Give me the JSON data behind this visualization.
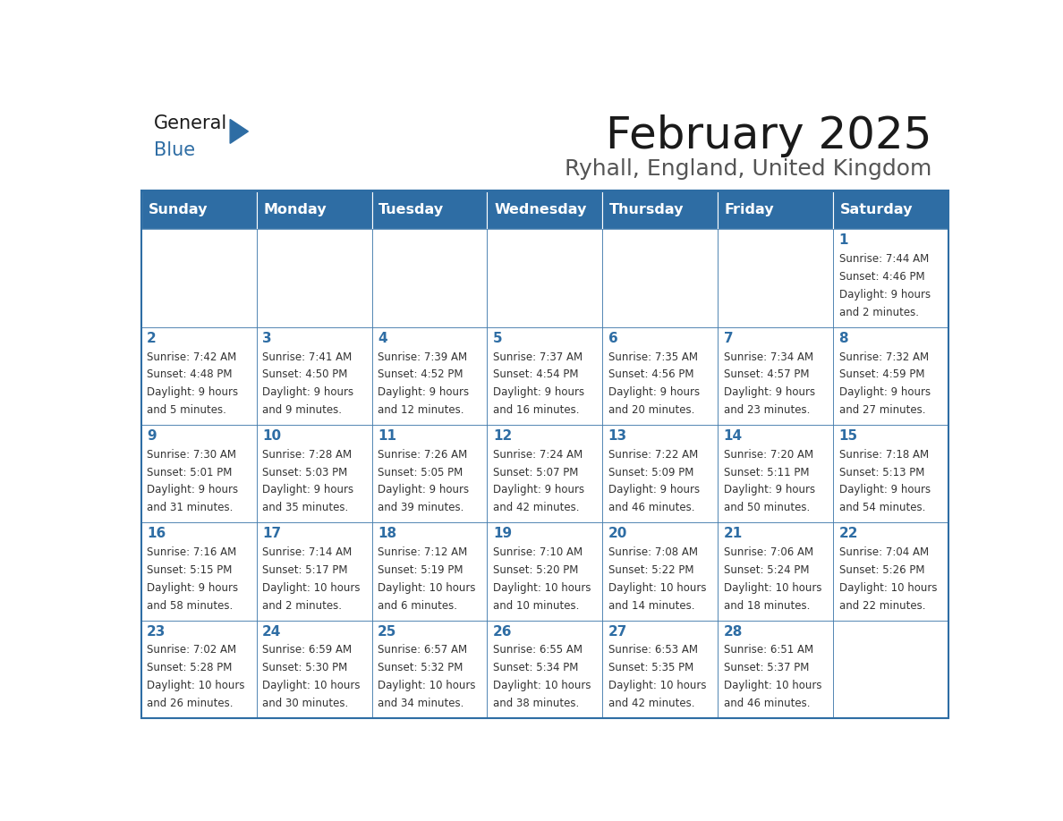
{
  "title": "February 2025",
  "subtitle": "Ryhall, England, United Kingdom",
  "header_color": "#2E6DA4",
  "header_text_color": "#FFFFFF",
  "border_color": "#2E6DA4",
  "text_color": "#333333",
  "day_number_color": "#2E6DA4",
  "days_of_week": [
    "Sunday",
    "Monday",
    "Tuesday",
    "Wednesday",
    "Thursday",
    "Friday",
    "Saturday"
  ],
  "weeks": [
    [
      {
        "day": "",
        "info": ""
      },
      {
        "day": "",
        "info": ""
      },
      {
        "day": "",
        "info": ""
      },
      {
        "day": "",
        "info": ""
      },
      {
        "day": "",
        "info": ""
      },
      {
        "day": "",
        "info": ""
      },
      {
        "day": "1",
        "info": "Sunrise: 7:44 AM\nSunset: 4:46 PM\nDaylight: 9 hours\nand 2 minutes."
      }
    ],
    [
      {
        "day": "2",
        "info": "Sunrise: 7:42 AM\nSunset: 4:48 PM\nDaylight: 9 hours\nand 5 minutes."
      },
      {
        "day": "3",
        "info": "Sunrise: 7:41 AM\nSunset: 4:50 PM\nDaylight: 9 hours\nand 9 minutes."
      },
      {
        "day": "4",
        "info": "Sunrise: 7:39 AM\nSunset: 4:52 PM\nDaylight: 9 hours\nand 12 minutes."
      },
      {
        "day": "5",
        "info": "Sunrise: 7:37 AM\nSunset: 4:54 PM\nDaylight: 9 hours\nand 16 minutes."
      },
      {
        "day": "6",
        "info": "Sunrise: 7:35 AM\nSunset: 4:56 PM\nDaylight: 9 hours\nand 20 minutes."
      },
      {
        "day": "7",
        "info": "Sunrise: 7:34 AM\nSunset: 4:57 PM\nDaylight: 9 hours\nand 23 minutes."
      },
      {
        "day": "8",
        "info": "Sunrise: 7:32 AM\nSunset: 4:59 PM\nDaylight: 9 hours\nand 27 minutes."
      }
    ],
    [
      {
        "day": "9",
        "info": "Sunrise: 7:30 AM\nSunset: 5:01 PM\nDaylight: 9 hours\nand 31 minutes."
      },
      {
        "day": "10",
        "info": "Sunrise: 7:28 AM\nSunset: 5:03 PM\nDaylight: 9 hours\nand 35 minutes."
      },
      {
        "day": "11",
        "info": "Sunrise: 7:26 AM\nSunset: 5:05 PM\nDaylight: 9 hours\nand 39 minutes."
      },
      {
        "day": "12",
        "info": "Sunrise: 7:24 AM\nSunset: 5:07 PM\nDaylight: 9 hours\nand 42 minutes."
      },
      {
        "day": "13",
        "info": "Sunrise: 7:22 AM\nSunset: 5:09 PM\nDaylight: 9 hours\nand 46 minutes."
      },
      {
        "day": "14",
        "info": "Sunrise: 7:20 AM\nSunset: 5:11 PM\nDaylight: 9 hours\nand 50 minutes."
      },
      {
        "day": "15",
        "info": "Sunrise: 7:18 AM\nSunset: 5:13 PM\nDaylight: 9 hours\nand 54 minutes."
      }
    ],
    [
      {
        "day": "16",
        "info": "Sunrise: 7:16 AM\nSunset: 5:15 PM\nDaylight: 9 hours\nand 58 minutes."
      },
      {
        "day": "17",
        "info": "Sunrise: 7:14 AM\nSunset: 5:17 PM\nDaylight: 10 hours\nand 2 minutes."
      },
      {
        "day": "18",
        "info": "Sunrise: 7:12 AM\nSunset: 5:19 PM\nDaylight: 10 hours\nand 6 minutes."
      },
      {
        "day": "19",
        "info": "Sunrise: 7:10 AM\nSunset: 5:20 PM\nDaylight: 10 hours\nand 10 minutes."
      },
      {
        "day": "20",
        "info": "Sunrise: 7:08 AM\nSunset: 5:22 PM\nDaylight: 10 hours\nand 14 minutes."
      },
      {
        "day": "21",
        "info": "Sunrise: 7:06 AM\nSunset: 5:24 PM\nDaylight: 10 hours\nand 18 minutes."
      },
      {
        "day": "22",
        "info": "Sunrise: 7:04 AM\nSunset: 5:26 PM\nDaylight: 10 hours\nand 22 minutes."
      }
    ],
    [
      {
        "day": "23",
        "info": "Sunrise: 7:02 AM\nSunset: 5:28 PM\nDaylight: 10 hours\nand 26 minutes."
      },
      {
        "day": "24",
        "info": "Sunrise: 6:59 AM\nSunset: 5:30 PM\nDaylight: 10 hours\nand 30 minutes."
      },
      {
        "day": "25",
        "info": "Sunrise: 6:57 AM\nSunset: 5:32 PM\nDaylight: 10 hours\nand 34 minutes."
      },
      {
        "day": "26",
        "info": "Sunrise: 6:55 AM\nSunset: 5:34 PM\nDaylight: 10 hours\nand 38 minutes."
      },
      {
        "day": "27",
        "info": "Sunrise: 6:53 AM\nSunset: 5:35 PM\nDaylight: 10 hours\nand 42 minutes."
      },
      {
        "day": "28",
        "info": "Sunrise: 6:51 AM\nSunset: 5:37 PM\nDaylight: 10 hours\nand 46 minutes."
      },
      {
        "day": "",
        "info": ""
      }
    ]
  ],
  "logo_general_color": "#1a1a1a",
  "logo_blue_color": "#2E6DA4",
  "logo_triangle_color": "#2E6DA4"
}
